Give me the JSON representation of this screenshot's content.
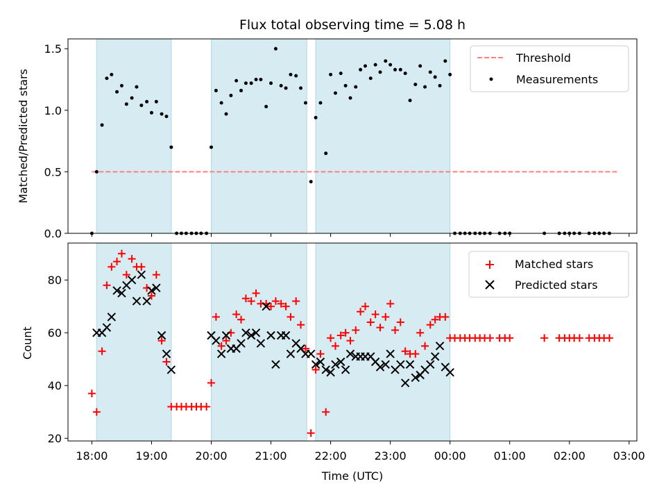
{
  "chart_data": [
    {
      "type": "scatter",
      "title": "Flux total observing time = 5.08 h",
      "ylabel": "Matched/Predicted stars",
      "xlabel": "",
      "ylim": [
        0,
        1.58
      ],
      "yticks": [
        0.0,
        0.5,
        1.0,
        1.5
      ],
      "ytick_labels": [
        "0.0",
        "0.5",
        "1.0",
        "1.5"
      ],
      "xlim": [
        17.6,
        27.13
      ],
      "xticks": [
        18,
        19,
        20,
        21,
        22,
        23,
        24,
        25,
        26,
        27
      ],
      "grid": false,
      "legend": "upper-right",
      "shaded_intervals": [
        [
          18.08,
          19.33
        ],
        [
          20.0,
          21.6
        ],
        [
          21.75,
          24.0
        ]
      ],
      "series": [
        {
          "name": "Threshold",
          "style": "dashed-line",
          "color": "#ff7f7f",
          "x": [
            18.0,
            26.83
          ],
          "y": [
            0.5,
            0.5
          ]
        },
        {
          "name": "Measurements",
          "style": "dot",
          "color": "#000000",
          "x": [
            18.0,
            18.08,
            18.17,
            18.25,
            18.33,
            18.42,
            18.5,
            18.58,
            18.67,
            18.75,
            18.83,
            18.92,
            19.0,
            19.08,
            19.17,
            19.25,
            19.33,
            19.42,
            19.5,
            19.58,
            19.67,
            19.75,
            19.83,
            19.92,
            20.0,
            20.08,
            20.17,
            20.25,
            20.33,
            20.42,
            20.5,
            20.58,
            20.67,
            20.75,
            20.83,
            20.92,
            21.0,
            21.08,
            21.17,
            21.25,
            21.33,
            21.42,
            21.5,
            21.58,
            21.67,
            21.75,
            21.83,
            21.92,
            22.0,
            22.08,
            22.17,
            22.25,
            22.33,
            22.42,
            22.5,
            22.58,
            22.67,
            22.75,
            22.83,
            22.92,
            23.0,
            23.08,
            23.17,
            23.25,
            23.33,
            23.42,
            23.5,
            23.58,
            23.67,
            23.75,
            23.83,
            23.92,
            24.0,
            24.08,
            24.17,
            24.25,
            24.33,
            24.42,
            24.5,
            24.58,
            24.67,
            24.83,
            24.92,
            25.0,
            25.58,
            25.83,
            25.92,
            26.0,
            26.08,
            26.17,
            26.33,
            26.42,
            26.5,
            26.58,
            26.67
          ],
          "y": [
            0.0,
            0.5,
            0.88,
            1.26,
            1.29,
            1.15,
            1.2,
            1.05,
            1.1,
            1.19,
            1.04,
            1.07,
            0.98,
            1.07,
            0.97,
            0.95,
            0.7,
            0.0,
            0.0,
            0.0,
            0.0,
            0.0,
            0.0,
            0.0,
            0.7,
            1.16,
            1.06,
            0.97,
            1.12,
            1.24,
            1.16,
            1.22,
            1.22,
            1.25,
            1.25,
            1.03,
            1.22,
            1.5,
            1.2,
            1.18,
            1.29,
            1.28,
            1.18,
            1.06,
            0.42,
            0.94,
            1.06,
            0.65,
            1.29,
            1.14,
            1.3,
            1.2,
            1.1,
            1.19,
            1.33,
            1.36,
            1.26,
            1.37,
            1.31,
            1.4,
            1.37,
            1.33,
            1.33,
            1.3,
            1.08,
            1.21,
            1.36,
            1.19,
            1.31,
            1.27,
            1.2,
            1.4,
            1.29,
            0.0,
            0.0,
            0.0,
            0.0,
            0.0,
            0.0,
            0.0,
            0.0,
            0.0,
            0.0,
            0.0,
            0.0,
            0.0,
            0.0,
            0.0,
            0.0,
            0.0,
            0.0,
            0.0,
            0.0,
            0.0,
            0.0
          ]
        }
      ]
    },
    {
      "type": "scatter",
      "title": "",
      "ylabel": "Count",
      "xlabel": "Time (UTC)",
      "ylim": [
        19,
        94
      ],
      "yticks": [
        20,
        40,
        60,
        80
      ],
      "ytick_labels": [
        "20",
        "40",
        "60",
        "80"
      ],
      "xlim": [
        17.6,
        27.13
      ],
      "xticks": [
        18,
        19,
        20,
        21,
        22,
        23,
        24,
        25,
        26,
        27
      ],
      "xtick_labels": [
        "18:00",
        "19:00",
        "20:00",
        "21:00",
        "22:00",
        "23:00",
        "00:00",
        "01:00",
        "02:00",
        "03:00"
      ],
      "grid": false,
      "legend": "upper-right",
      "shaded_intervals": [
        [
          18.08,
          19.33
        ],
        [
          20.0,
          21.6
        ],
        [
          21.75,
          24.0
        ]
      ],
      "series": [
        {
          "name": "Matched stars",
          "style": "plus",
          "color": "#ff0000",
          "x": [
            18.0,
            18.08,
            18.17,
            18.25,
            18.33,
            18.42,
            18.5,
            18.58,
            18.67,
            18.75,
            18.83,
            18.92,
            19.0,
            19.08,
            19.17,
            19.25,
            19.33,
            19.42,
            19.5,
            19.58,
            19.67,
            19.75,
            19.83,
            19.92,
            20.0,
            20.08,
            20.17,
            20.25,
            20.33,
            20.42,
            20.5,
            20.58,
            20.67,
            20.75,
            20.83,
            20.92,
            21.0,
            21.08,
            21.17,
            21.25,
            21.33,
            21.42,
            21.5,
            21.58,
            21.67,
            21.75,
            21.83,
            21.92,
            22.0,
            22.08,
            22.17,
            22.25,
            22.33,
            22.42,
            22.5,
            22.58,
            22.67,
            22.75,
            22.83,
            22.92,
            23.0,
            23.08,
            23.17,
            23.25,
            23.33,
            23.42,
            23.5,
            23.58,
            23.67,
            23.75,
            23.83,
            23.92,
            24.0,
            24.08,
            24.17,
            24.25,
            24.33,
            24.42,
            24.5,
            24.58,
            24.67,
            24.83,
            24.92,
            25.0,
            25.58,
            25.83,
            25.92,
            26.0,
            26.08,
            26.17,
            26.33,
            26.42,
            26.5,
            26.58,
            26.67
          ],
          "y": [
            37,
            30,
            53,
            78,
            85,
            87,
            90,
            82,
            88,
            85,
            85,
            77,
            74,
            82,
            57,
            49,
            32,
            32,
            32,
            32,
            32,
            32,
            32,
            32,
            41,
            66,
            55,
            57,
            60,
            67,
            65,
            73,
            72,
            75,
            71,
            71,
            70,
            72,
            71,
            70,
            66,
            72,
            63,
            54,
            22,
            46,
            52,
            30,
            58,
            55,
            59,
            60,
            57,
            61,
            68,
            70,
            64,
            67,
            62,
            66,
            71,
            61,
            64,
            53,
            52,
            52,
            60,
            55,
            63,
            65,
            66,
            66,
            58,
            58,
            58,
            58,
            58,
            58,
            58,
            58,
            58,
            58,
            58,
            58,
            58,
            58,
            58,
            58,
            58,
            58,
            58,
            58,
            58,
            58,
            58
          ]
        },
        {
          "name": "Predicted stars",
          "style": "x",
          "color": "#000000",
          "x": [
            18.08,
            18.17,
            18.25,
            18.33,
            18.42,
            18.5,
            18.58,
            18.67,
            18.75,
            18.83,
            18.92,
            19.0,
            19.08,
            19.17,
            19.25,
            19.33,
            20.0,
            20.08,
            20.17,
            20.25,
            20.33,
            20.42,
            20.5,
            20.58,
            20.67,
            20.75,
            20.83,
            20.92,
            21.0,
            21.08,
            21.17,
            21.25,
            21.33,
            21.42,
            21.5,
            21.58,
            21.67,
            21.75,
            21.83,
            21.92,
            22.0,
            22.08,
            22.17,
            22.25,
            22.33,
            22.42,
            22.5,
            22.58,
            22.67,
            22.75,
            22.83,
            22.92,
            23.0,
            23.08,
            23.17,
            23.25,
            23.33,
            23.42,
            23.5,
            23.58,
            23.67,
            23.75,
            23.83,
            23.92,
            24.0
          ],
          "y": [
            60,
            60,
            62,
            66,
            76,
            75,
            78,
            80,
            72,
            82,
            72,
            76,
            77,
            59,
            52,
            46,
            59,
            57,
            52,
            59,
            54,
            54,
            56,
            60,
            59,
            60,
            56,
            70,
            59,
            48,
            59,
            59,
            52,
            56,
            54,
            52,
            52,
            48,
            49,
            46,
            45,
            48,
            49,
            46,
            52,
            51,
            51,
            51,
            51,
            49,
            47,
            48,
            52,
            46,
            48,
            41,
            48,
            43,
            44,
            46,
            48,
            51,
            55,
            47,
            45
          ]
        }
      ]
    }
  ]
}
